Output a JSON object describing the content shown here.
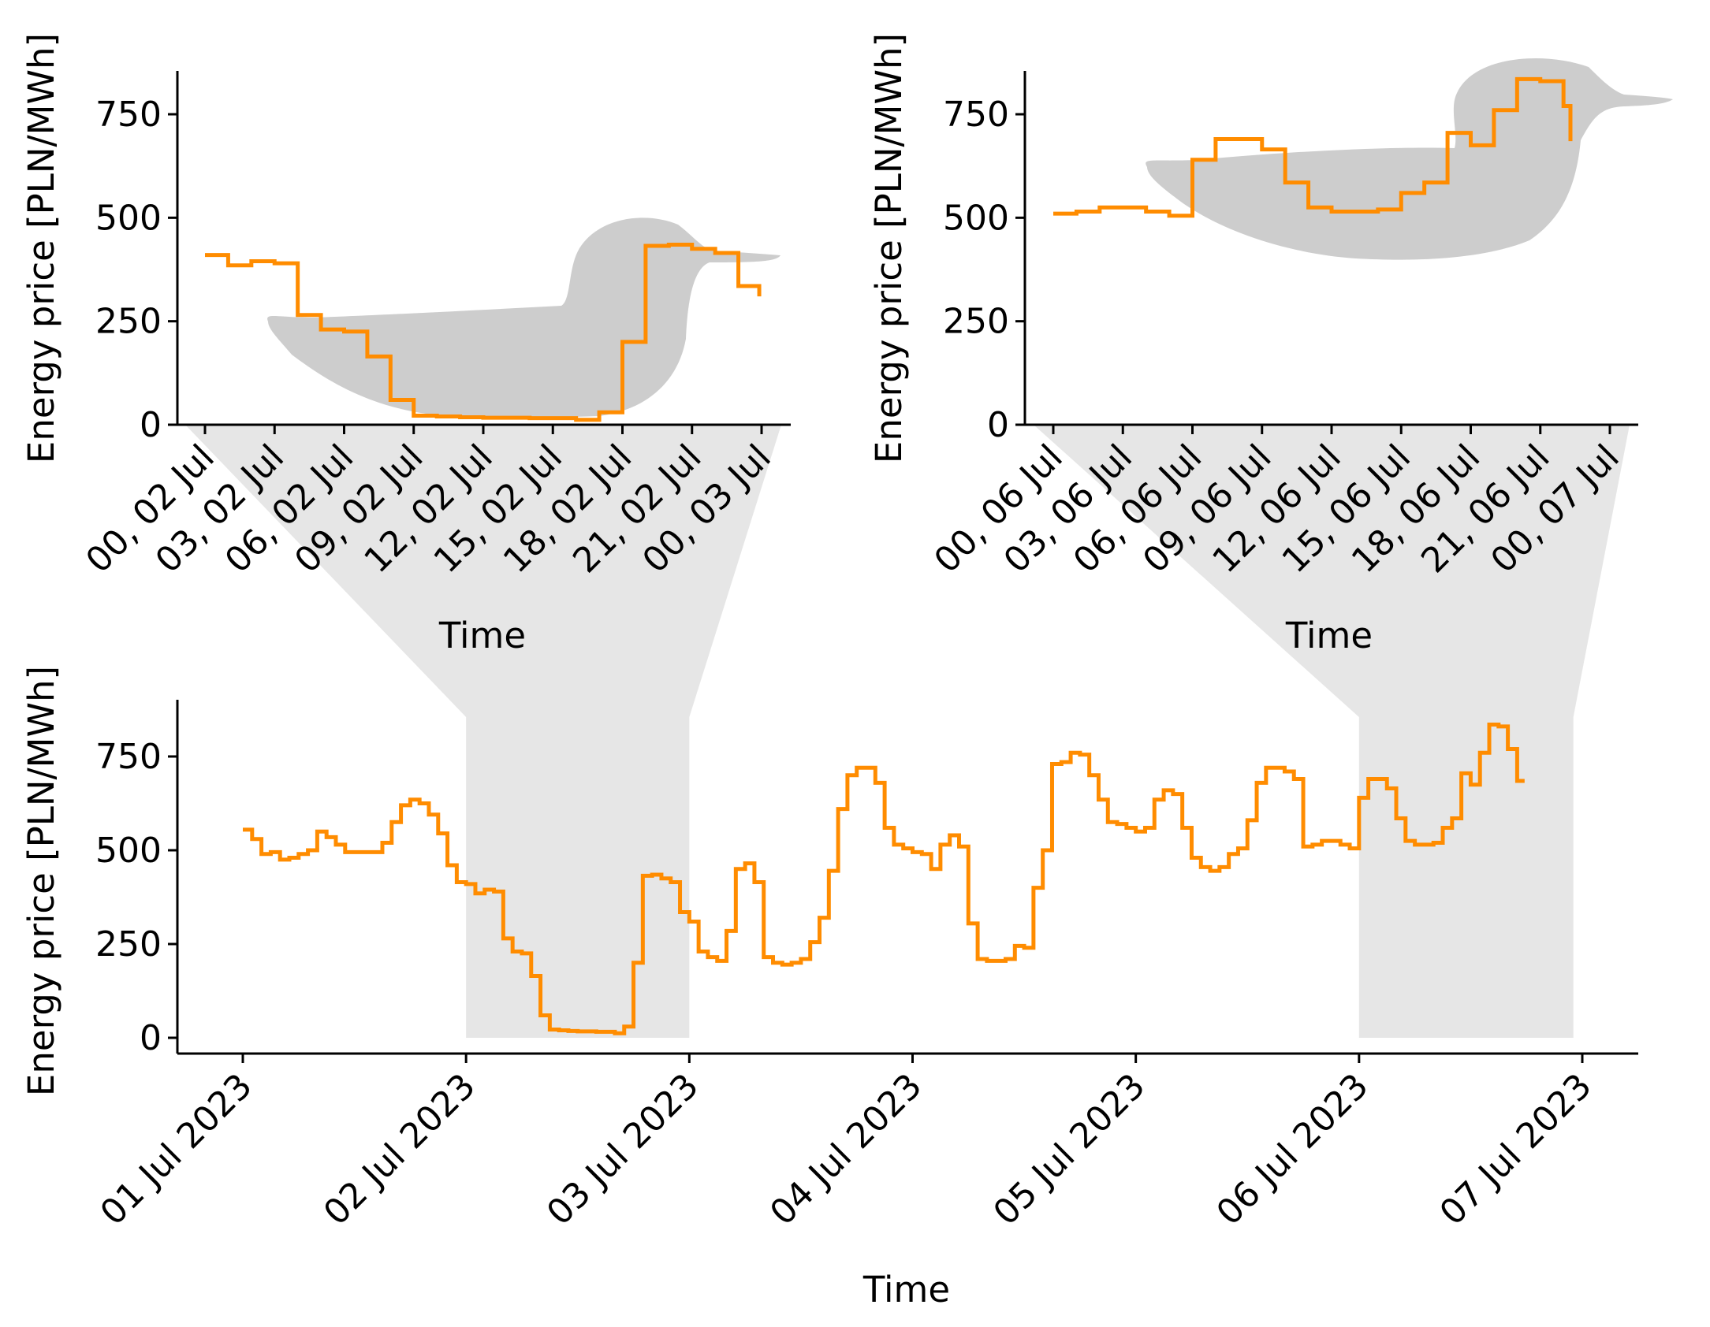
{
  "chart_data": [
    {
      "id": "top-left",
      "type": "line",
      "step": true,
      "title": "",
      "xlabel": "Time",
      "ylabel": "Energy price [PLN/MWh]",
      "xlim": [
        0,
        24
      ],
      "ylim": [
        0,
        850
      ],
      "xticks": [
        0,
        3,
        6,
        9,
        12,
        15,
        18,
        21,
        24
      ],
      "xtick_labels": [
        "00, 02 Jul",
        "03, 02 Jul",
        "06, 02 Jul",
        "09, 02 Jul",
        "12, 02 Jul",
        "15, 02 Jul",
        "18, 02 Jul",
        "21, 02 Jul",
        "00, 03 Jul"
      ],
      "yticks": [
        0,
        250,
        500,
        750
      ],
      "ytick_labels": [
        "0",
        "250",
        "500",
        "750"
      ],
      "duck_background": true,
      "series": [
        {
          "name": "Energy price",
          "color": "#ff8c00",
          "x": [
            0,
            1,
            2,
            3,
            4,
            5,
            6,
            7,
            8,
            9,
            10,
            11,
            12,
            13,
            14,
            15,
            16,
            17,
            18,
            19,
            20,
            21,
            22,
            23,
            23.9
          ],
          "values": [
            410,
            385,
            395,
            390,
            265,
            230,
            225,
            165,
            60,
            22,
            20,
            18,
            17,
            17,
            16,
            16,
            12,
            30,
            200,
            432,
            435,
            425,
            415,
            335,
            310
          ]
        }
      ]
    },
    {
      "id": "top-right",
      "type": "line",
      "step": true,
      "title": "",
      "xlabel": "Time",
      "ylabel": "Energy price [PLN/MWh]",
      "xlim": [
        0,
        24
      ],
      "ylim": [
        0,
        850
      ],
      "xticks": [
        0,
        3,
        6,
        9,
        12,
        15,
        18,
        21,
        24
      ],
      "xtick_labels": [
        "00, 06 Jul",
        "03, 06 Jul",
        "06, 06 Jul",
        "09, 06 Jul",
        "12, 06 Jul",
        "15, 06 Jul",
        "18, 06 Jul",
        "21, 06 Jul",
        "00, 07 Jul"
      ],
      "yticks": [
        0,
        250,
        500,
        750
      ],
      "ytick_labels": [
        "0",
        "250",
        "500",
        "750"
      ],
      "duck_background": true,
      "series": [
        {
          "name": "Energy price",
          "color": "#ff8c00",
          "x": [
            0,
            1,
            2,
            3,
            4,
            5,
            6,
            7,
            8,
            9,
            10,
            11,
            12,
            13,
            14,
            15,
            16,
            17,
            18,
            19,
            20,
            21,
            22,
            22.3
          ],
          "values": [
            510,
            515,
            525,
            525,
            515,
            505,
            640,
            690,
            690,
            665,
            585,
            525,
            515,
            515,
            520,
            560,
            585,
            705,
            675,
            760,
            835,
            830,
            770,
            685
          ]
        }
      ]
    },
    {
      "id": "bottom",
      "type": "line",
      "step": true,
      "title": "",
      "xlabel": "Time",
      "ylabel": "Energy price [PLN/MWh]",
      "xlim": [
        -0.3,
        6.27
      ],
      "ylim": [
        -40,
        890
      ],
      "xticks": [
        0,
        1,
        2,
        3,
        4,
        5,
        6
      ],
      "xtick_labels": [
        "01 Jul 2023",
        "02 Jul 2023",
        "03 Jul 2023",
        "04 Jul 2023",
        "05 Jul 2023",
        "06 Jul 2023",
        "07 Jul 2023"
      ],
      "yticks": [
        0,
        250,
        500,
        750
      ],
      "ytick_labels": [
        "0",
        "250",
        "500",
        "750"
      ],
      "zoom_regions": [
        [
          1,
          2
        ],
        [
          5,
          5.96
        ]
      ],
      "series": [
        {
          "name": "Energy price",
          "color": "#ff8c00",
          "hourly_values": [
            555,
            530,
            490,
            495,
            475,
            480,
            490,
            500,
            550,
            535,
            515,
            495,
            495,
            495,
            495,
            520,
            575,
            620,
            635,
            625,
            595,
            545,
            460,
            415,
            410,
            385,
            395,
            390,
            265,
            230,
            225,
            165,
            60,
            22,
            20,
            18,
            17,
            17,
            16,
            16,
            12,
            30,
            200,
            432,
            435,
            425,
            415,
            335,
            310,
            230,
            215,
            205,
            285,
            450,
            465,
            415,
            215,
            200,
            195,
            200,
            210,
            255,
            320,
            445,
            610,
            700,
            720,
            720,
            680,
            560,
            515,
            505,
            495,
            490,
            450,
            515,
            540,
            510,
            305,
            210,
            205,
            205,
            210,
            245,
            240,
            400,
            500,
            730,
            735,
            760,
            755,
            700,
            635,
            575,
            570,
            560,
            550,
            560,
            635,
            660,
            650,
            560,
            480,
            455,
            445,
            455,
            490,
            505,
            580,
            680,
            720,
            720,
            710,
            690,
            510,
            515,
            525,
            525,
            515,
            505,
            640,
            690,
            690,
            665,
            585,
            525,
            515,
            515,
            520,
            560,
            585,
            705,
            675,
            760,
            835,
            830,
            770,
            685
          ]
        }
      ]
    }
  ]
}
